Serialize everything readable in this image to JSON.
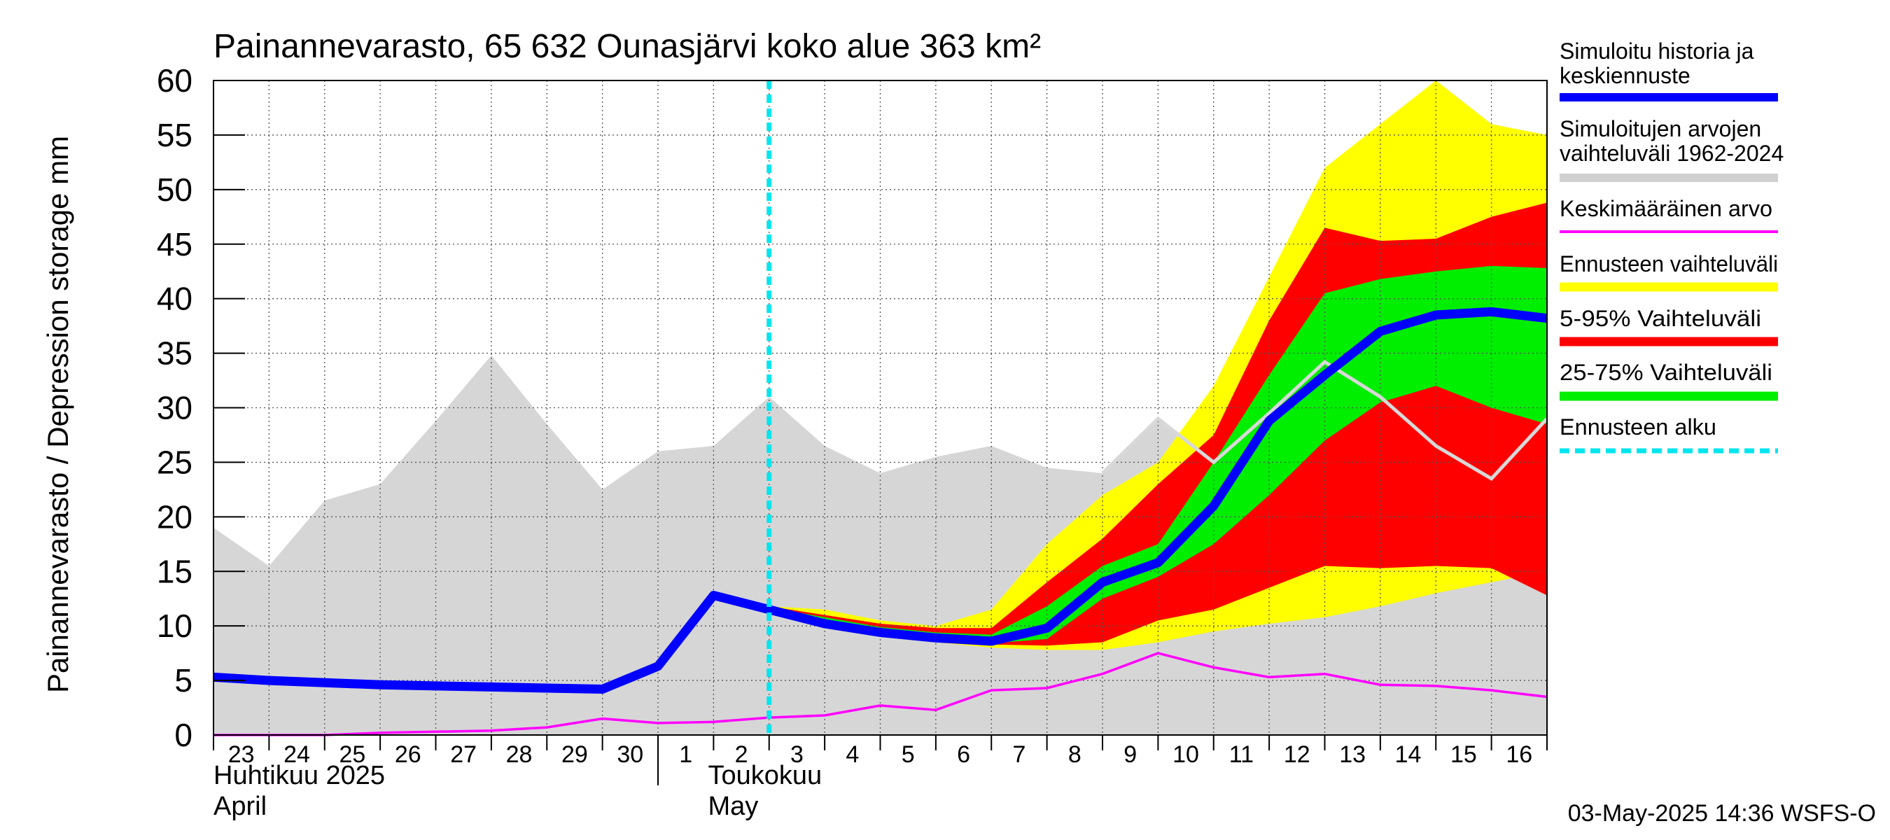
{
  "chart_data": {
    "type": "area",
    "title": "Painannevarasto, 65 632 Ounasjärvi koko alue 363 km²",
    "ylabel": "Painannevarasto / Depression storage    mm",
    "ylim": [
      0,
      60
    ],
    "y_ticks": [
      "0",
      "5",
      "10",
      "15",
      "20",
      "25",
      "30",
      "35",
      "40",
      "45",
      "50",
      "55",
      "60"
    ],
    "x_tick_labels": [
      "23",
      "24",
      "25",
      "26",
      "27",
      "28",
      "29",
      "30",
      "1",
      "2",
      "3",
      "4",
      "5",
      "6",
      "7",
      "8",
      "9",
      "10",
      "11",
      "12",
      "13",
      "14",
      "15",
      "16"
    ],
    "month_labels": [
      {
        "line1": "Huhtikuu  2025",
        "line2": "April"
      },
      {
        "line1": "Toukokuu",
        "line2": "May"
      }
    ],
    "grid": true,
    "legend_position": "right",
    "forecast_start_day": 10,
    "history_range": {
      "x": [
        0,
        1,
        2,
        3,
        4,
        5,
        6,
        7,
        8,
        9,
        10,
        11,
        12,
        13,
        14,
        15,
        16,
        17,
        18,
        19,
        20,
        21,
        22,
        23,
        24
      ],
      "low": [
        0,
        0,
        0,
        0,
        0,
        0,
        0,
        0,
        0,
        0,
        0,
        0,
        0,
        0,
        0,
        0,
        0,
        0,
        0,
        0,
        0,
        0,
        0,
        0,
        0
      ],
      "high": [
        19,
        15.5,
        21.5,
        23,
        28.8,
        34.8,
        28.5,
        22.5,
        26,
        26.5,
        31,
        26.5,
        24,
        25.5,
        26.5,
        24.5,
        24,
        29,
        25,
        29.5,
        33.5,
        30.5,
        26.5,
        22.5,
        28.5
      ]
    },
    "forecast_range": {
      "x": [
        10,
        11,
        12,
        13,
        14,
        15,
        16,
        17,
        18,
        19,
        20,
        21,
        22,
        23,
        24
      ],
      "min": [
        11.5,
        10,
        9,
        8.5,
        8,
        7.8,
        7.8,
        8.5,
        9.5,
        10.2,
        10.8,
        11.8,
        13,
        14,
        15
      ],
      "max": [
        11.8,
        11.5,
        10.5,
        10,
        11.5,
        17.5,
        22,
        25,
        32,
        42,
        52,
        56,
        60,
        56,
        55
      ]
    },
    "p5_95": {
      "x": [
        10,
        11,
        12,
        13,
        14,
        15,
        16,
        17,
        18,
        19,
        20,
        21,
        22,
        23,
        24
      ],
      "low": [
        11.5,
        10,
        9.2,
        8.6,
        8.3,
        8.2,
        8.5,
        10.5,
        11.5,
        13.5,
        15.5,
        15.3,
        15.5,
        15.3,
        12.8
      ],
      "high": [
        11.8,
        11,
        10.2,
        9.8,
        9.8,
        14,
        18,
        23,
        27.5,
        38,
        46.5,
        45.3,
        45.5,
        47.5,
        48.8
      ]
    },
    "p25_75": {
      "x": [
        10,
        11,
        12,
        13,
        14,
        15,
        16,
        17,
        18,
        19,
        20,
        21,
        22,
        23,
        24
      ],
      "low": [
        11.6,
        10.2,
        9.3,
        8.7,
        8.4,
        8.8,
        12.5,
        14.5,
        17.5,
        22,
        27,
        30.5,
        32,
        30,
        28.5
      ],
      "high": [
        11.7,
        10.8,
        9.9,
        9.4,
        9.2,
        11.8,
        15.5,
        17.5,
        25,
        33,
        40.5,
        41.8,
        42.5,
        43,
        42.8
      ]
    },
    "series": [
      {
        "name": "Simuloitu historia ja keskiennuste",
        "color": "#0000ff",
        "x": [
          0,
          1,
          2,
          3,
          4,
          5,
          6,
          7,
          8,
          9,
          10,
          11,
          12,
          13,
          14,
          15,
          16,
          17,
          18,
          19,
          20,
          21,
          22,
          23,
          24
        ],
        "values": [
          5.3,
          5,
          4.8,
          4.6,
          4.5,
          4.4,
          4.3,
          4.2,
          6.3,
          12.8,
          11.5,
          10.2,
          9.4,
          8.9,
          8.6,
          9.8,
          14,
          15.8,
          21,
          28.8,
          33,
          37,
          38.5,
          38.8,
          38.2
        ]
      },
      {
        "name": "Keskimääräinen arvo",
        "color": "#ff00ff",
        "x": [
          0,
          1,
          2,
          3,
          4,
          5,
          6,
          7,
          8,
          9,
          10,
          11,
          12,
          13,
          14,
          15,
          16,
          17,
          18,
          19,
          20,
          21,
          22,
          23,
          24
        ],
        "values": [
          0,
          0,
          0,
          0.2,
          0.3,
          0.4,
          0.7,
          1.5,
          1.1,
          1.2,
          1.6,
          1.8,
          2.7,
          2.3,
          4.1,
          4.3,
          5.6,
          7.5,
          6.2,
          5.3,
          5.6,
          4.6,
          4.5,
          4.1,
          3.5
        ]
      },
      {
        "name": "Simuloitujen arvojen vaihteluväli 1962-2024",
        "color": "#d8d8d8",
        "x": [
          16,
          17,
          18,
          19,
          20,
          21,
          22,
          23,
          24
        ],
        "values": [
          24,
          29,
          25,
          29.5,
          34.2,
          31,
          26.5,
          23.5,
          29
        ]
      }
    ],
    "legend": [
      {
        "label": "Simuloitu historia ja keskiennuste",
        "color": "#0000ff",
        "style": "line"
      },
      {
        "label": "Simuloitujen arvojen vaihteluväli 1962-2024",
        "color": "#d0d0d0",
        "style": "band"
      },
      {
        "label": "Keskimääräinen arvo",
        "color": "#ff00ff",
        "style": "thin"
      },
      {
        "label": "Ennusteen vaihteluväli",
        "color": "#ffff00",
        "style": "band"
      },
      {
        "label": "5-95% Vaihteluväli",
        "color": "#ff0000",
        "style": "band"
      },
      {
        "label": "25-75% Vaihteluväli",
        "color": "#00ee00",
        "style": "band"
      },
      {
        "label": "Ennusteen alku",
        "color": "#00e5ee",
        "style": "dashed"
      }
    ],
    "footer": "03-May-2025 14:36 WSFS-O"
  }
}
